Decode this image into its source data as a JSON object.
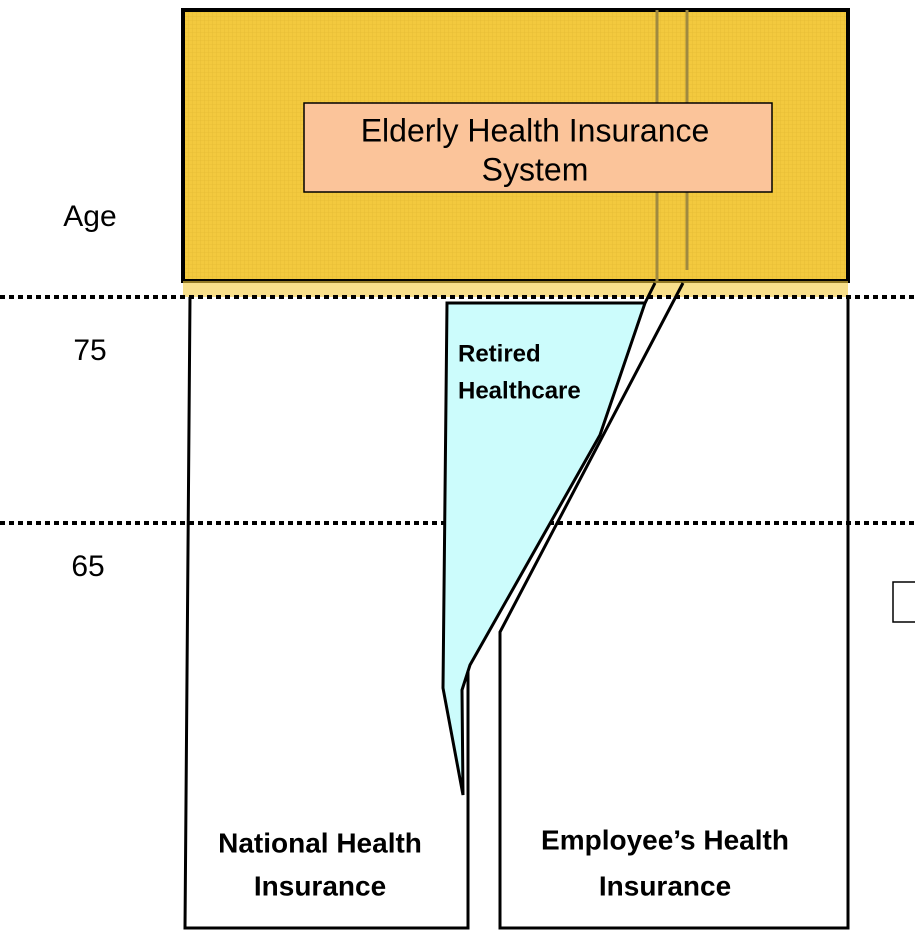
{
  "axis_label": "Age",
  "age_marks": [
    "75",
    "65"
  ],
  "elderly_system": {
    "lines": [
      "Elderly Health Insurance",
      "System"
    ]
  },
  "retired": {
    "lines": [
      "Retired",
      "Healthcare"
    ]
  },
  "national": {
    "lines": [
      "National Health",
      "Insurance"
    ]
  },
  "employee": {
    "lines": [
      "Employee’s Health",
      "Insurance"
    ]
  }
}
